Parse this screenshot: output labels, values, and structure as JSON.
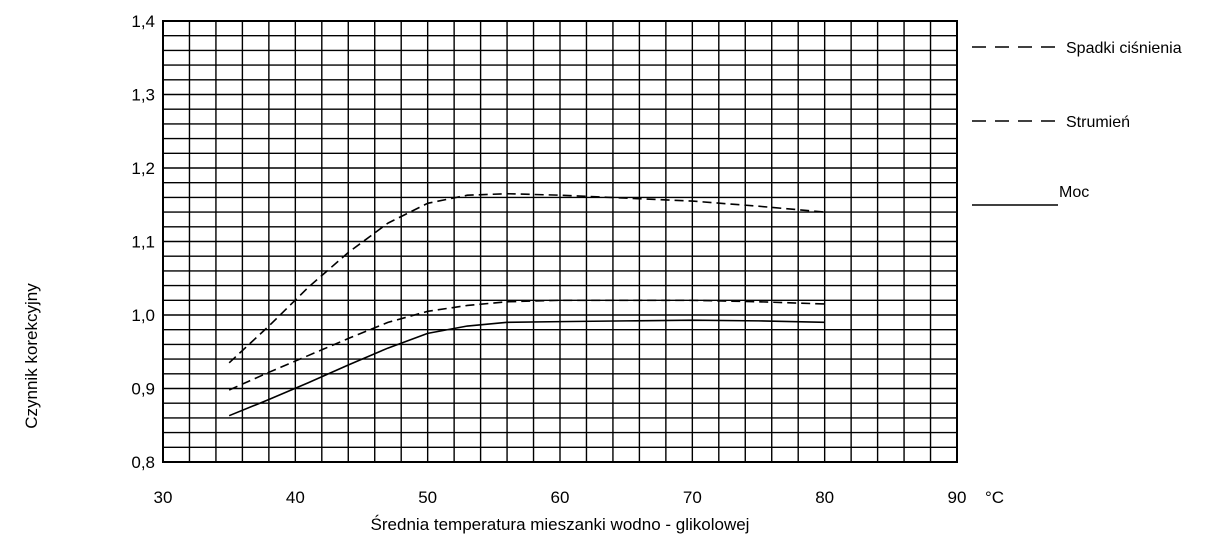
{
  "chart_data": {
    "type": "line",
    "xlabel": "Średnia temperatura mieszanki wodno - glikolowej",
    "ylabel": "Czynnik korekcyjny",
    "x_unit": "°C",
    "xlim": [
      30,
      90
    ],
    "ylim": [
      0.8,
      1.4
    ],
    "x_ticks": [
      30,
      40,
      50,
      60,
      70,
      80,
      90
    ],
    "x_tick_labels": [
      "30",
      "40",
      "50",
      "60",
      "70",
      "80",
      "90"
    ],
    "y_ticks": [
      0.8,
      0.9,
      1.0,
      1.1,
      1.2,
      1.3,
      1.4
    ],
    "y_tick_labels": [
      "0,8",
      "0,9",
      "1,0",
      "1,1",
      "1,2",
      "1,3",
      "1,4"
    ],
    "grid": true,
    "legend_position": "right",
    "series": [
      {
        "name": "Spadki ciśnienia",
        "style": "dashed",
        "x": [
          35,
          38,
          41,
          44,
          47,
          50,
          53,
          56,
          60,
          65,
          70,
          75,
          80
        ],
        "values": [
          0.935,
          0.985,
          1.038,
          1.085,
          1.125,
          1.152,
          1.163,
          1.165,
          1.163,
          1.159,
          1.155,
          1.148,
          1.14
        ]
      },
      {
        "name": "Strumień",
        "style": "dashed",
        "x": [
          35,
          38,
          41,
          44,
          47,
          50,
          53,
          56,
          60,
          65,
          70,
          75,
          80
        ],
        "values": [
          0.898,
          0.922,
          0.945,
          0.968,
          0.99,
          1.005,
          1.013,
          1.018,
          1.02,
          1.02,
          1.02,
          1.018,
          1.015
        ]
      },
      {
        "name": "Moc",
        "style": "solid",
        "x": [
          35,
          38,
          41,
          44,
          47,
          50,
          53,
          56,
          60,
          65,
          70,
          75,
          80
        ],
        "values": [
          0.863,
          0.885,
          0.908,
          0.932,
          0.955,
          0.975,
          0.985,
          0.99,
          0.991,
          0.992,
          0.993,
          0.992,
          0.99
        ]
      }
    ]
  }
}
